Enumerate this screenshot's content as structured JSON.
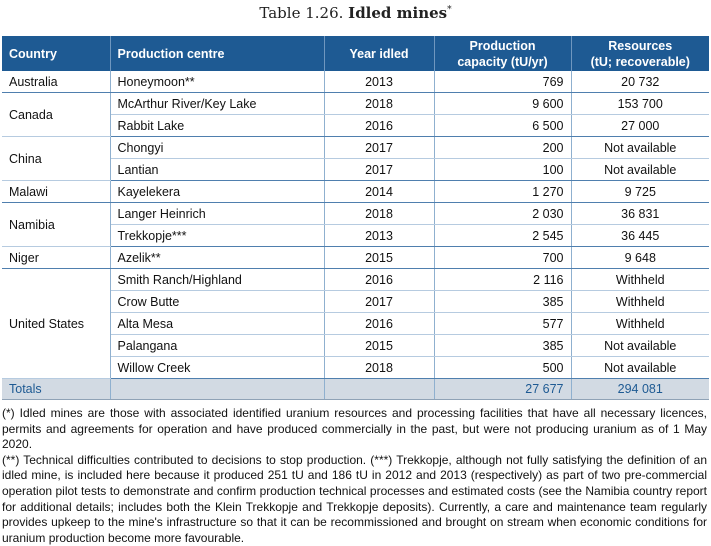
{
  "caption": {
    "prefix": "Table 1.26.",
    "title": "Idled mines",
    "mark": "*"
  },
  "table": {
    "headers": {
      "country": "Country",
      "centre": "Production centre",
      "year": "Year idled",
      "capacity_line1": "Production",
      "capacity_line2": "capacity (tU/yr)",
      "resources_line1": "Resources",
      "resources_line2": "(tU; recoverable)"
    },
    "groups": [
      {
        "country": "Australia",
        "rows": [
          {
            "centre": "Honeymoon**",
            "year": "2013",
            "capacity": "769",
            "resources": "20 732"
          }
        ]
      },
      {
        "country": "Canada",
        "rows": [
          {
            "centre": "McArthur River/Key Lake",
            "year": "2018",
            "capacity": "9 600",
            "resources": "153 700"
          },
          {
            "centre": "Rabbit Lake",
            "year": "2016",
            "capacity": "6 500",
            "resources": "27 000"
          }
        ]
      },
      {
        "country": "China",
        "rows": [
          {
            "centre": "Chongyi",
            "year": "2017",
            "capacity": "200",
            "resources": "Not available"
          },
          {
            "centre": "Lantian",
            "year": "2017",
            "capacity": "100",
            "resources": "Not available"
          }
        ]
      },
      {
        "country": "Malawi",
        "rows": [
          {
            "centre": "Kayelekera",
            "year": "2014",
            "capacity": "1 270",
            "resources": "9 725"
          }
        ]
      },
      {
        "country": "Namibia",
        "rows": [
          {
            "centre": "Langer Heinrich",
            "year": "2018",
            "capacity": "2 030",
            "resources": "36 831"
          },
          {
            "centre": "Trekkopje***",
            "year": "2013",
            "capacity": "2 545",
            "resources": "36 445"
          }
        ]
      },
      {
        "country": "Niger",
        "rows": [
          {
            "centre": "Azelik**",
            "year": "2015",
            "capacity": "700",
            "resources": "9 648"
          }
        ]
      },
      {
        "country": "United States",
        "rows": [
          {
            "centre": "Smith Ranch/Highland",
            "year": "2016",
            "capacity": "2 116",
            "resources": "Withheld"
          },
          {
            "centre": "Crow Butte",
            "year": "2017",
            "capacity": "385",
            "resources": "Withheld"
          },
          {
            "centre": "Alta Mesa",
            "year": "2016",
            "capacity": "577",
            "resources": "Withheld"
          },
          {
            "centre": "Palangana",
            "year": "2015",
            "capacity": "385",
            "resources": "Not available"
          },
          {
            "centre": "Willow Creek",
            "year": "2018",
            "capacity": "500",
            "resources": "Not available"
          }
        ]
      }
    ],
    "totals": {
      "label": "Totals",
      "capacity": "27 677",
      "resources": "294 081"
    }
  },
  "footnotes": [
    "(*) Idled mines are those with associated identified uranium resources and processing facilities that have all necessary licences, permits and agreements for operation and have produced commercially in the past, but were not producing uranium as of 1 May 2020.",
    "(**) Technical difficulties contributed to decisions to stop production. (***) Trekkopje, although not fully satisfying the definition of an idled mine, is included here because it produced 251 tU and 186 tU in 2012 and 2013 (respectively) as part of two pre-commercial operation pilot tests to demonstrate and confirm production technical processes and estimated costs (see the Namibia country report for additional details; includes both the Klein Trekkopje and Trekkopje deposits). Currently, a care and maintenance team regularly provides upkeep to the mine's infrastructure so that it can be recommissioned and brought on stream when economic conditions for uranium production become more favourable."
  ]
}
